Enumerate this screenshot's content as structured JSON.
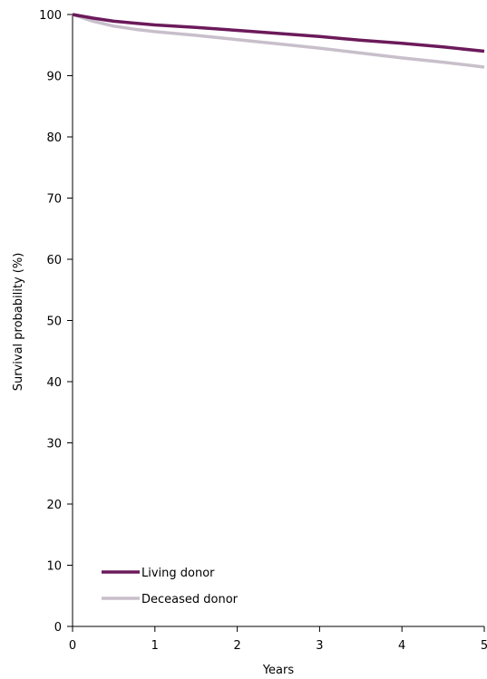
{
  "chart_data": {
    "type": "line",
    "title": "",
    "xlabel": "Years",
    "ylabel": "Survival probability (%)",
    "xlim": [
      0,
      5
    ],
    "ylim": [
      0,
      100
    ],
    "xticks": [
      0,
      1,
      2,
      3,
      4,
      5
    ],
    "yticks": [
      0,
      10,
      20,
      30,
      40,
      50,
      60,
      70,
      80,
      90,
      100
    ],
    "grid": false,
    "legend_position": "bottom-left",
    "series": [
      {
        "name": "Living donor",
        "color": "#6b1a5a",
        "x": [
          0,
          0.25,
          0.5,
          0.75,
          1,
          1.5,
          2,
          2.5,
          3,
          3.5,
          4,
          4.5,
          5
        ],
        "y": [
          100,
          99.4,
          98.9,
          98.6,
          98.3,
          97.9,
          97.4,
          96.9,
          96.4,
          95.8,
          95.3,
          94.7,
          94.0
        ]
      },
      {
        "name": "Deceased donor",
        "color": "#c8bfcb",
        "x": [
          0,
          0.25,
          0.5,
          0.75,
          1,
          1.5,
          2,
          2.5,
          3,
          3.5,
          4,
          4.5,
          5
        ],
        "y": [
          100,
          98.9,
          98.1,
          97.6,
          97.2,
          96.6,
          95.9,
          95.2,
          94.5,
          93.7,
          92.9,
          92.2,
          91.4
        ]
      }
    ]
  }
}
